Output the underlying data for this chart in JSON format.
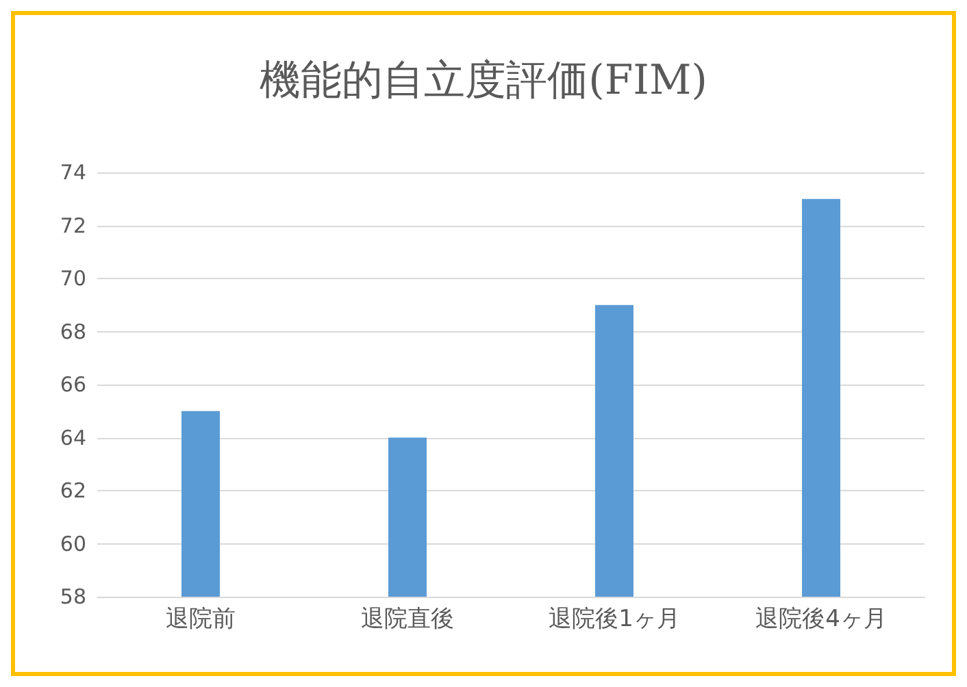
{
  "chart_data": {
    "type": "bar",
    "title": "機能的自立度評価(FIM)",
    "categories": [
      "退院前",
      "退院直後",
      "退院後1ヶ月",
      "退院後4ヶ月"
    ],
    "values": [
      65,
      64,
      69,
      73
    ],
    "color": "#5b9bd5",
    "ylim": [
      58,
      74
    ],
    "yticks": [
      58,
      60,
      62,
      64,
      66,
      68,
      70,
      72,
      74
    ],
    "grid": "y"
  }
}
